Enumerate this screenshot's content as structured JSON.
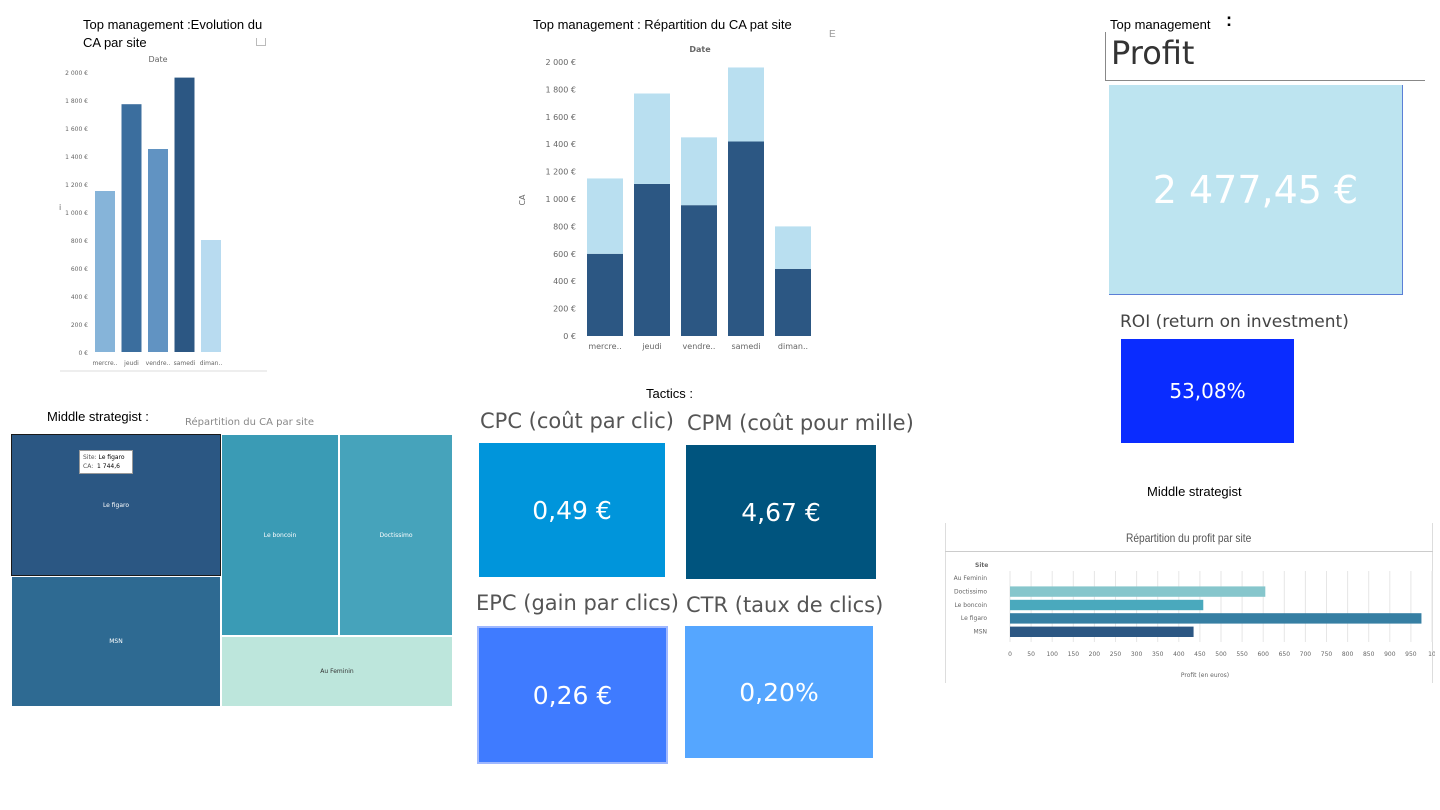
{
  "headings": {
    "evolution": "Top management :Evolution du CA par site",
    "repartition": "Top management : Répartition du CA pat site",
    "profit_top": "Top  management",
    "profit_colon": ":",
    "middle_left": "Middle strategist :",
    "tactics": "Tactics :",
    "middle_right": "Middle strategist"
  },
  "chart1": {
    "axis_title": "Date",
    "side_label": "i",
    "ticks": [
      "2 000 €",
      "1 800 €",
      "1 600 €",
      "1 400 €",
      "1 200 €",
      "1 000 €",
      "800 €",
      "600 €",
      "400 €",
      "200 €",
      "0 €"
    ]
  },
  "chart2": {
    "axis_title": "Date",
    "y_label": "CA",
    "ticks": [
      "2 000 €",
      "1 800 €",
      "1 600 €",
      "1 400 €",
      "1 200 €",
      "1 000 €",
      "800 €",
      "600 €",
      "400 €",
      "200 €",
      "0 €"
    ]
  },
  "profit": {
    "title": "Profit",
    "value": "2 477,45 €",
    "roi_label": "ROI (return on investment)",
    "roi_value": "53,08%"
  },
  "treemap": {
    "title": "Répartition du CA par site",
    "tooltip_site_label": "Site:",
    "tooltip_site_value": "Le figaro",
    "tooltip_ca_label": "CA:",
    "tooltip_ca_value": "1 744,6",
    "cells": [
      {
        "label": "Le figaro",
        "color": "#2b5783"
      },
      {
        "label": "MSN",
        "color": "#2e6a92"
      },
      {
        "label": "Le boncoin",
        "color": "#3a9bb5"
      },
      {
        "label": "Doctissimo",
        "color": "#46a3bb"
      },
      {
        "label": "Au Feminin",
        "color": "#bde6dc"
      }
    ]
  },
  "tactics": {
    "cpc_label": "CPC (coût par clic)",
    "cpc_value": "0,49 €",
    "cpc_color": "#0095db",
    "cpm_label": "CPM (coût pour mille)",
    "cpm_value": "4,67 €",
    "cpm_color": "#00547e",
    "epc_label": "EPC (gain par clics)",
    "epc_value": "0,26 €",
    "epc_color": "#3f7bff",
    "ctr_label": "CTR (taux de clics)",
    "ctr_value": "0,20%",
    "ctr_color": "#55a6ff"
  },
  "profit_chart": {
    "title": "Répartition du profit par site",
    "header": "Site",
    "xlabel": "Profit (en euros)",
    "ticks": [
      "0",
      "50",
      "100",
      "150",
      "200",
      "250",
      "300",
      "350",
      "400",
      "450",
      "500",
      "550",
      "600",
      "650",
      "700",
      "750",
      "800",
      "850",
      "900",
      "950",
      "10"
    ]
  },
  "chart_data": [
    {
      "type": "bar",
      "title": "",
      "xlabel": "Date",
      "ylabel": "",
      "categories": [
        "mercre..",
        "jeudi",
        "vendre..",
        "samedi",
        "diman.."
      ],
      "values": [
        1150,
        1770,
        1450,
        1960,
        800
      ],
      "colors": [
        "#86b4d9",
        "#3b6e9e",
        "#6193c2",
        "#2c5783",
        "#b8dbf0"
      ],
      "ylim": [
        0,
        2000
      ],
      "grid": false
    },
    {
      "type": "bar",
      "stacked": true,
      "title": "",
      "xlabel": "Date",
      "ylabel": "CA",
      "categories": [
        "mercre..",
        "jeudi",
        "vendre..",
        "samedi",
        "diman.."
      ],
      "series": [
        {
          "values": [
            600,
            1110,
            955,
            1420,
            490
          ],
          "color": "#2c5783"
        },
        {
          "values": [
            550,
            660,
            495,
            540,
            310
          ],
          "color": "#b9dff0"
        }
      ],
      "ylim": [
        0,
        2000
      ],
      "grid": false
    },
    {
      "type": "treemap",
      "title": "Répartition du CA par site",
      "categories": [
        "Le figaro",
        "MSN",
        "Le boncoin",
        "Doctissimo",
        "Au Feminin"
      ],
      "values": [
        1744.6,
        1250,
        1040,
        1040,
        500
      ]
    },
    {
      "type": "bar",
      "orientation": "horizontal",
      "title": "Répartition du profit par site",
      "xlabel": "Profit (en euros)",
      "ylabel": "Site",
      "categories": [
        "Au Feminin",
        "Doctissimo",
        "Le boncoin",
        "Le figaro",
        "MSN"
      ],
      "values": [
        0,
        605,
        458,
        975,
        435
      ],
      "colors": [
        "#bde6dc",
        "#86c6cc",
        "#4aa9bd",
        "#367fa3",
        "#2c5783"
      ],
      "xlim": [
        0,
        1000
      ],
      "grid": true
    }
  ]
}
